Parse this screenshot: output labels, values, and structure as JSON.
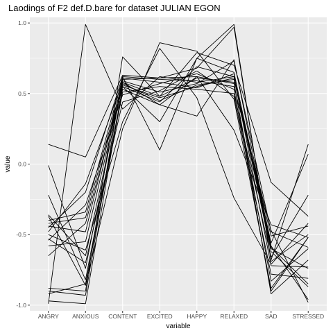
{
  "chart_data": {
    "type": "line",
    "title": "Laodings of F2 def.D.bare for dataset JULIAN EGON",
    "xlabel": "variable",
    "ylabel": "value",
    "categories": [
      "ANGRY",
      "ANXIOUS",
      "CONTENT",
      "EXCITED",
      "HAPPY",
      "RELAXED",
      "SAD",
      "STRESSED"
    ],
    "ylim": [
      -1.04,
      1.04
    ],
    "yticks": [
      -1.0,
      -0.5,
      0.0,
      0.5,
      1.0
    ],
    "ytick_labels": [
      "-1.0",
      "-0.5",
      "0.0",
      "0.5",
      "1.0"
    ],
    "grid": true,
    "legend": "none",
    "colors": {
      "panel": "#ebebeb",
      "grid": "#ffffff",
      "line": "#000000"
    },
    "series": [
      {
        "values": [
          0.14,
          0.05,
          0.63,
          0.61,
          0.68,
          0.97,
          -0.68,
          0.14
        ]
      },
      {
        "values": [
          -0.99,
          0.99,
          0.39,
          0.62,
          0.58,
          0.62,
          -0.72,
          -0.73
        ]
      },
      {
        "values": [
          -0.88,
          -0.9,
          0.76,
          0.48,
          0.79,
          0.7,
          -0.13,
          -0.37
        ]
      },
      {
        "values": [
          -0.9,
          -0.93,
          0.62,
          0.1,
          0.75,
          0.99,
          -0.69,
          -0.5
        ]
      },
      {
        "values": [
          -0.97,
          -0.99,
          0.55,
          0.44,
          0.69,
          0.62,
          -0.6,
          -0.74
        ]
      },
      {
        "values": [
          -0.37,
          -0.86,
          0.25,
          0.86,
          0.8,
          0.46,
          -0.88,
          -0.52
        ]
      },
      {
        "values": [
          -0.5,
          -0.61,
          0.3,
          0.82,
          0.47,
          -0.24,
          -0.71,
          -0.42
        ]
      },
      {
        "values": [
          -0.01,
          -0.74,
          0.6,
          0.61,
          0.62,
          0.24,
          -0.43,
          -0.52
        ]
      },
      {
        "values": [
          -0.22,
          -0.82,
          0.53,
          0.42,
          0.34,
          0.74,
          -0.58,
          -0.96
        ]
      },
      {
        "values": [
          -0.44,
          -0.48,
          0.59,
          0.51,
          0.57,
          0.73,
          -0.48,
          -0.59
        ]
      },
      {
        "values": [
          -0.65,
          -0.42,
          0.55,
          0.3,
          0.75,
          0.65,
          -0.59,
          -0.85
        ]
      },
      {
        "values": [
          -0.58,
          -0.55,
          0.57,
          0.45,
          0.56,
          0.6,
          -0.51,
          -0.44
        ]
      },
      {
        "values": [
          -0.4,
          -0.34,
          0.61,
          0.58,
          0.54,
          0.64,
          -0.56,
          0.07
        ]
      },
      {
        "values": [
          -0.54,
          -0.29,
          0.49,
          0.57,
          0.64,
          0.53,
          -0.9,
          -0.52
        ]
      },
      {
        "values": [
          -0.36,
          -0.65,
          0.56,
          0.47,
          0.55,
          0.61,
          -0.62,
          -0.87
        ]
      },
      {
        "values": [
          -0.48,
          -0.14,
          0.58,
          0.42,
          0.62,
          0.57,
          -0.83,
          -0.6
        ]
      },
      {
        "values": [
          -0.45,
          -0.2,
          0.62,
          0.6,
          0.59,
          0.55,
          -0.47,
          -0.98
        ]
      },
      {
        "values": [
          -0.53,
          -0.7,
          0.44,
          0.52,
          0.66,
          0.48,
          -0.78,
          -0.81
        ]
      },
      {
        "values": [
          -0.42,
          -0.38,
          0.58,
          0.48,
          0.61,
          0.58,
          -0.92,
          -0.68
        ]
      },
      {
        "values": [
          -0.92,
          -0.85,
          0.51,
          0.55,
          0.53,
          0.5,
          -0.66,
          -0.22
        ]
      }
    ]
  }
}
